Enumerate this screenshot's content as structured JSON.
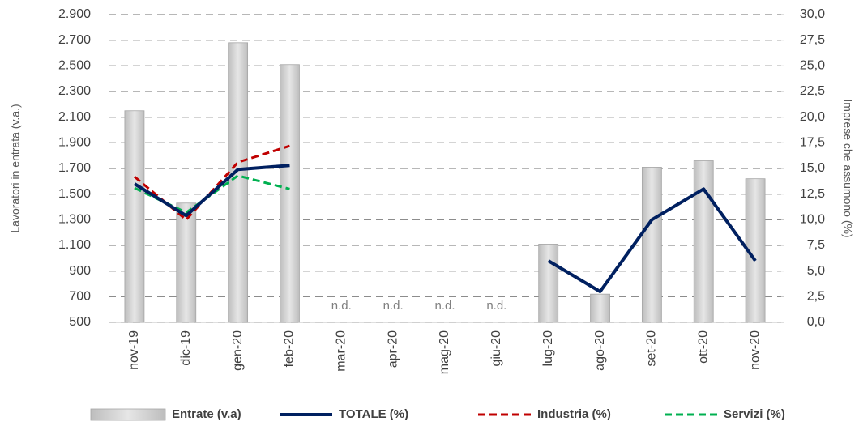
{
  "chart_data": {
    "type": "bar",
    "categories": [
      "nov-19",
      "dic-19",
      "gen-20",
      "feb-20",
      "mar-20",
      "apr-20",
      "mag-20",
      "giu-20",
      "lug-20",
      "ago-20",
      "set-20",
      "ott-20",
      "nov-20"
    ],
    "ylabel": "Lavoratori in entrata (v.a.)",
    "y2label": "Imprese che assumono (%)",
    "ylim": [
      500,
      2900
    ],
    "yticks": [
      500,
      700,
      900,
      {
        "value": 1100,
        "label": "1.100"
      },
      {
        "value": 1300,
        "label": "1.300"
      },
      {
        "value": 1500,
        "label": "1.500"
      },
      {
        "value": 1700,
        "label": "1.700"
      },
      {
        "value": 1900,
        "label": "1.900"
      },
      {
        "value": 2100,
        "label": "2.100"
      },
      {
        "value": 2300,
        "label": "2.300"
      },
      {
        "value": 2500,
        "label": "2.500"
      },
      {
        "value": 2700,
        "label": "2.700"
      },
      {
        "value": 2900,
        "label": "2.900"
      }
    ],
    "y2lim": [
      0,
      30
    ],
    "y2ticks": [
      {
        "value": 0,
        "label": "0,0"
      },
      {
        "value": 2.5,
        "label": "2,5"
      },
      {
        "value": 5,
        "label": "5,0"
      },
      {
        "value": 7.5,
        "label": "7,5"
      },
      {
        "value": 10,
        "label": "10,0"
      },
      {
        "value": 12.5,
        "label": "12,5"
      },
      {
        "value": 15,
        "label": "15,0"
      },
      {
        "value": 17.5,
        "label": "17,5"
      },
      {
        "value": 20,
        "label": "20,0"
      },
      {
        "value": 22.5,
        "label": "22,5"
      },
      {
        "value": 25,
        "label": "25,0"
      },
      {
        "value": 27.5,
        "label": "27,5"
      },
      {
        "value": 30,
        "label": "30,0"
      }
    ],
    "grid": true,
    "legend": "bottom",
    "series": [
      {
        "name": "Entrate (v.a)",
        "type": "bar",
        "color": "#d9d9d9",
        "values": [
          2150,
          1430,
          2680,
          2510,
          null,
          null,
          null,
          null,
          1110,
          720,
          1710,
          1760,
          1620
        ],
        "value_labels": [
          null,
          null,
          null,
          null,
          "n.d.",
          "n.d.",
          "n.d.",
          "n.d.",
          null,
          null,
          null,
          null,
          null
        ]
      },
      {
        "name": "TOTALE (%)",
        "type": "line",
        "axis": "y2",
        "color": "#002060",
        "dashed": false,
        "values": [
          13.5,
          10.4,
          14.9,
          15.3,
          null,
          null,
          null,
          null,
          6.0,
          3.0,
          10.0,
          13.0,
          6.0
        ]
      },
      {
        "name": "Industria (%)",
        "type": "line",
        "axis": "y2",
        "color": "#c00000",
        "dashed": true,
        "values": [
          14.2,
          10.0,
          15.6,
          17.2,
          null,
          null,
          null,
          null,
          null,
          null,
          null,
          null,
          null
        ]
      },
      {
        "name": "Servizi (%)",
        "type": "line",
        "axis": "y2",
        "color": "#00b050",
        "dashed": true,
        "values": [
          13.1,
          10.7,
          14.3,
          13.0,
          null,
          null,
          null,
          null,
          null,
          null,
          null,
          null,
          null
        ]
      }
    ]
  }
}
